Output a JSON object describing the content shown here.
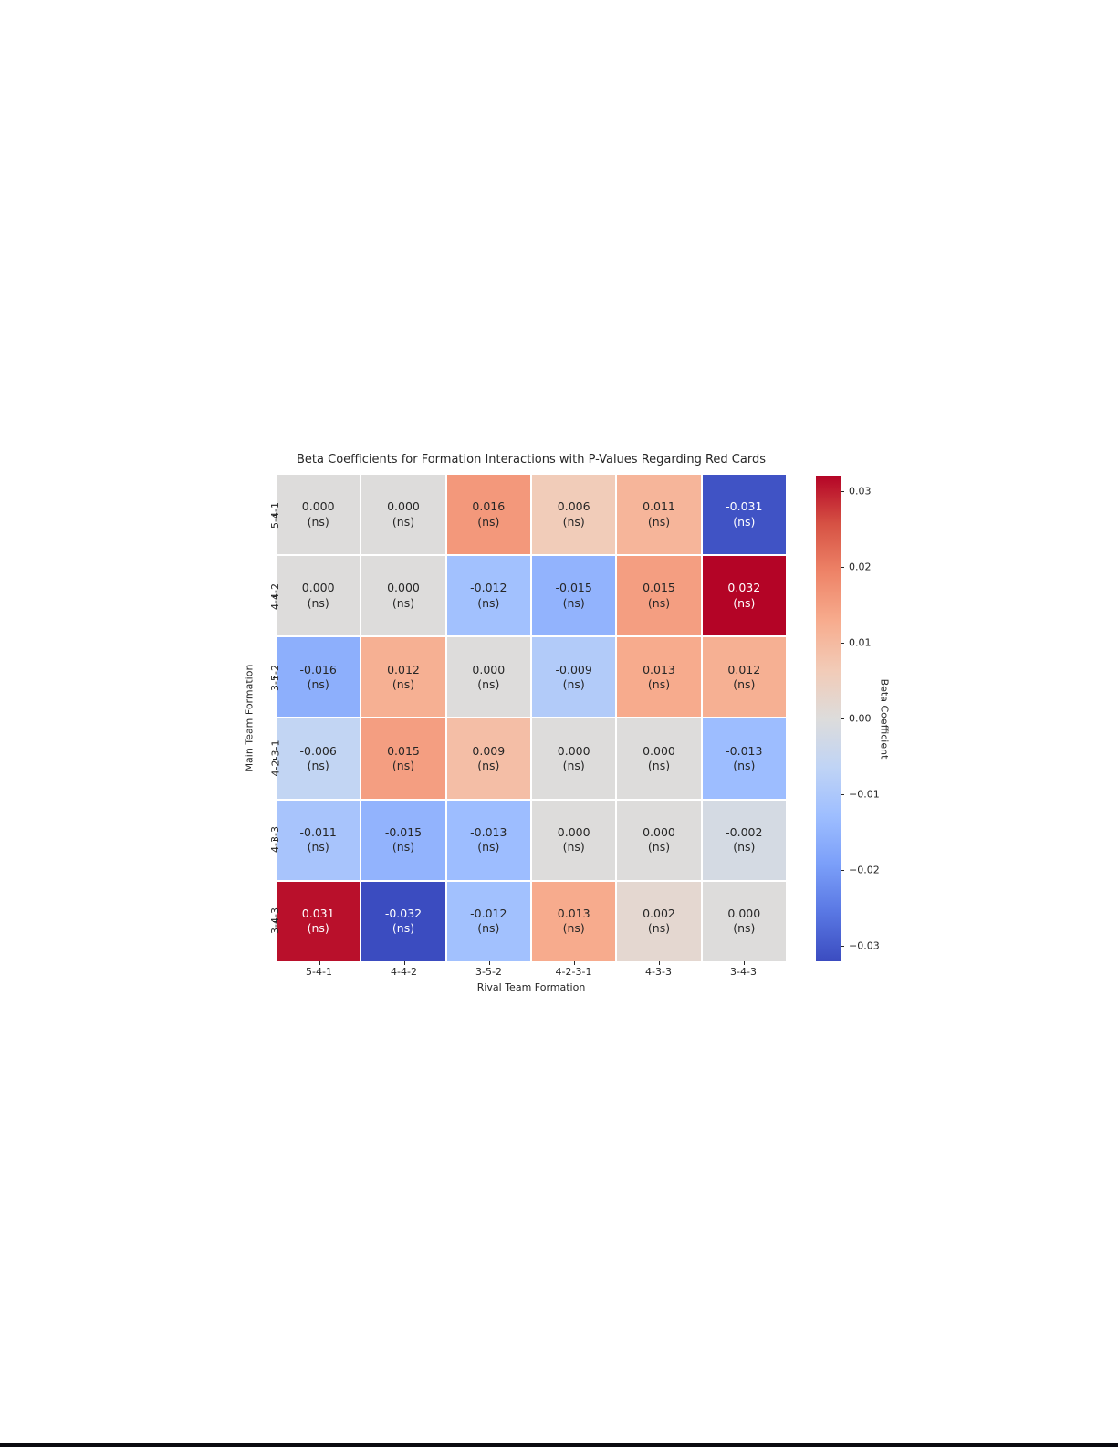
{
  "page": {
    "background": "#ffffff",
    "bottom_bar_color": "#0a0a10"
  },
  "chart_data": {
    "type": "heatmap",
    "title": "Beta Coefficients for Formation Interactions with P-Values Regarding Red Cards",
    "xlabel": "Rival Team Formation",
    "ylabel": "Main Team Formation",
    "x_categories": [
      "5-4-1",
      "4-4-2",
      "3-5-2",
      "4-2-3-1",
      "4-3-3",
      "3-4-3"
    ],
    "y_categories": [
      "5-4-1",
      "4-4-2",
      "3-5-2",
      "4-2-3-1",
      "4-3-3",
      "3-4-3"
    ],
    "values": [
      [
        0.0,
        0.0,
        0.016,
        0.006,
        0.011,
        -0.031
      ],
      [
        0.0,
        0.0,
        -0.012,
        -0.015,
        0.015,
        0.032
      ],
      [
        -0.016,
        0.012,
        0.0,
        -0.009,
        0.013,
        0.012
      ],
      [
        -0.006,
        0.015,
        0.009,
        0.0,
        0.0,
        -0.013
      ],
      [
        -0.011,
        -0.015,
        -0.013,
        0.0,
        0.0,
        -0.002
      ],
      [
        0.031,
        -0.032,
        -0.012,
        0.013,
        0.002,
        0.0
      ]
    ],
    "annotation_suffix": "(ns)",
    "value_decimals": 3,
    "vmin": -0.032,
    "vmax": 0.032,
    "colormap": "coolwarm",
    "colormap_colors": [
      "#3b4cc0",
      "#5977e3",
      "#7b9ff9",
      "#9ebeff",
      "#c0d4f5",
      "#dddcdb",
      "#f2cbb7",
      "#f7ac8e",
      "#ee8468",
      "#d65244",
      "#b40426"
    ],
    "grid_line_color": "#ffffff",
    "annotation_color_dark": "#262626",
    "annotation_color_light": "#ffffff",
    "colorbar": {
      "label": "Beta Coefficient",
      "ticks": [
        {
          "label": "0.03",
          "value": 0.03
        },
        {
          "label": "0.02",
          "value": 0.02
        },
        {
          "label": "0.01",
          "value": 0.01
        },
        {
          "label": "0.00",
          "value": 0.0
        },
        {
          "label": "−0.01",
          "value": -0.01
        },
        {
          "label": "−0.02",
          "value": -0.02
        },
        {
          "label": "−0.03",
          "value": -0.03
        }
      ]
    }
  }
}
